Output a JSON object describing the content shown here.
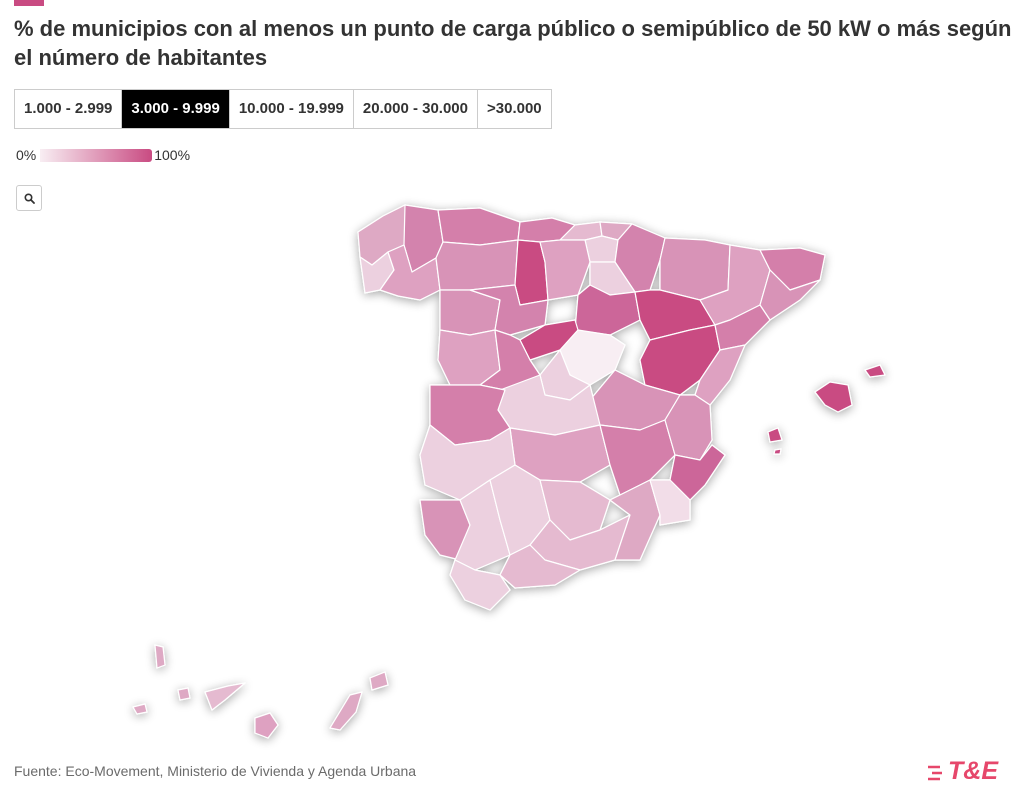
{
  "header": {
    "title": "% de municipios con al menos un punto de carga público o semipúblico de 50 kW o más según el número de habitantes"
  },
  "tabs": [
    {
      "label": "1.000 - 2.999",
      "active": false
    },
    {
      "label": "3.000 - 9.999",
      "active": true
    },
    {
      "label": "10.000 - 19.999",
      "active": false
    },
    {
      "label": "20.000 - 30.000",
      "active": false
    },
    {
      "label": ">30.000",
      "active": false
    }
  ],
  "legend": {
    "min_label": "0%",
    "max_label": "100%"
  },
  "controls": {
    "search_icon": "search-icon"
  },
  "footer": {
    "source": "Fuente: Eco-Movement, Ministerio de Vivienda y Agenda Urbana",
    "logo": "T&E"
  },
  "colors": {
    "accent": "#c94b82",
    "scale_low": "#f8eef3",
    "scale_high": "#c94b82",
    "logo": "#e6476b"
  }
}
